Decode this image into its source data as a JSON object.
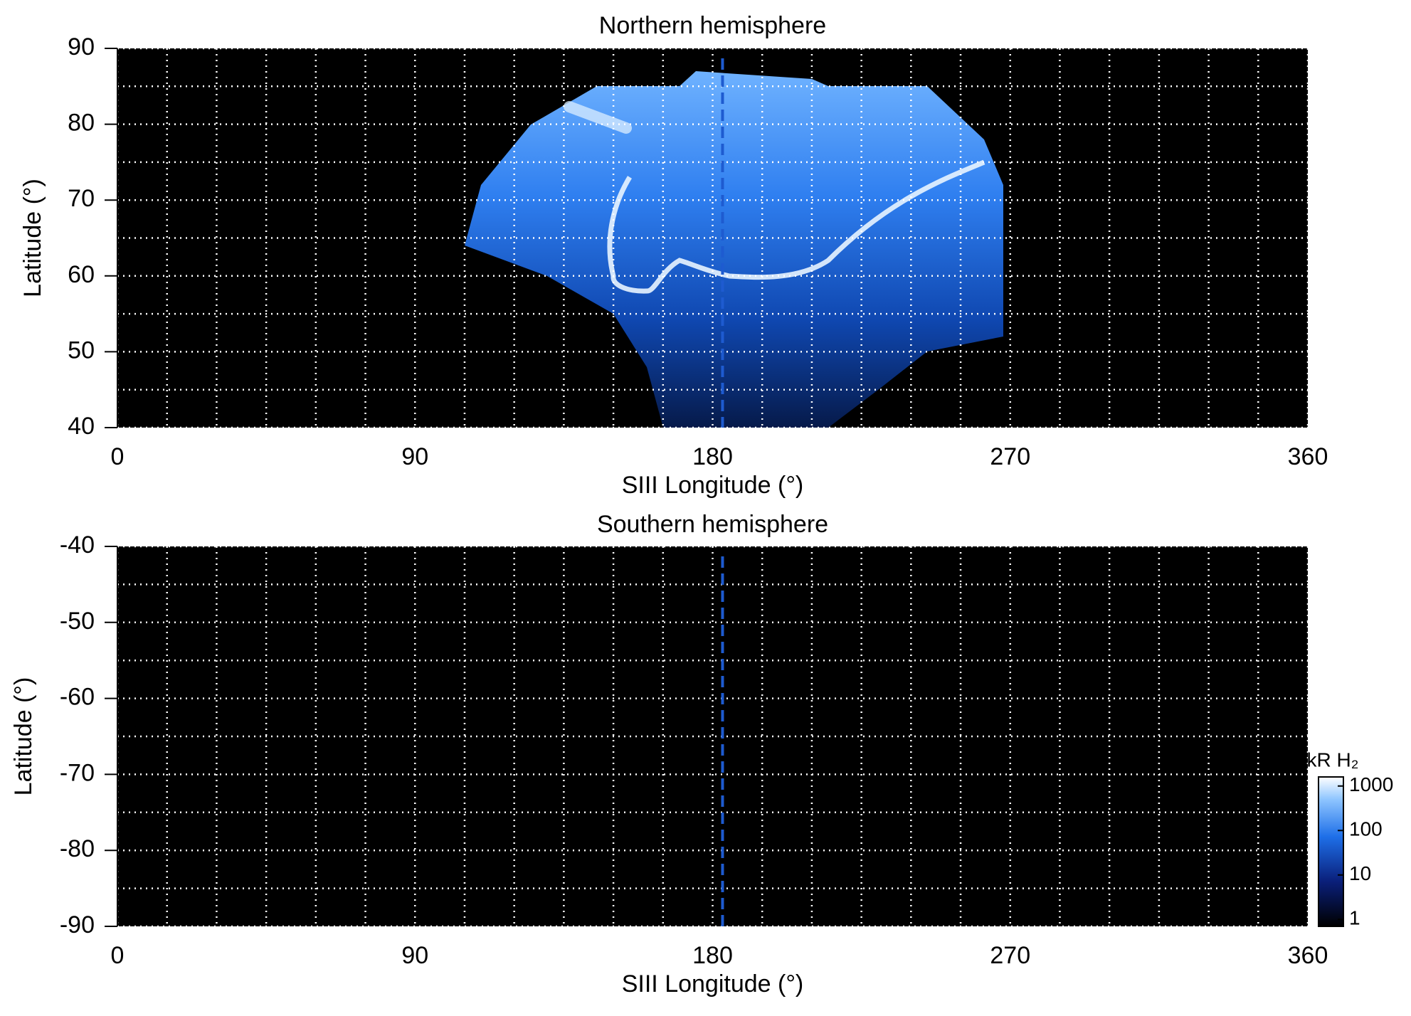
{
  "chart_data": [
    {
      "type": "heatmap",
      "title": "Northern hemisphere",
      "xlabel": "SIII Longitude (°)",
      "ylabel": "Latitude (°)",
      "xlim": [
        0,
        360
      ],
      "xticks": [
        0,
        90,
        180,
        270,
        360
      ],
      "ylim": [
        40,
        90
      ],
      "yticks": [
        40,
        50,
        60,
        70,
        80,
        90
      ],
      "xgrid": [
        0,
        15,
        30,
        45,
        60,
        75,
        90,
        105,
        120,
        135,
        150,
        165,
        180,
        195,
        210,
        225,
        240,
        255,
        270,
        285,
        300,
        315,
        330,
        345,
        360
      ],
      "ygrid": [
        40,
        45,
        50,
        55,
        60,
        65,
        70,
        75,
        80,
        85,
        90
      ],
      "grid_color": "#ffffff",
      "background": "#000000",
      "reference_line": {
        "x": 183,
        "color": "#1e5bd0"
      }
    },
    {
      "type": "heatmap",
      "title": "Southern hemisphere",
      "xlabel": "SIII Longitude (°)",
      "ylabel": "Latitude (°)",
      "xlim": [
        0,
        360
      ],
      "xticks": [
        0,
        90,
        180,
        270,
        360
      ],
      "ylim": [
        -90,
        -40
      ],
      "yticks": [
        -40,
        -50,
        -60,
        -70,
        -80,
        -90
      ],
      "xgrid": [
        0,
        15,
        30,
        45,
        60,
        75,
        90,
        105,
        120,
        135,
        150,
        165,
        180,
        195,
        210,
        225,
        240,
        255,
        270,
        285,
        300,
        315,
        330,
        345,
        360
      ],
      "ygrid": [
        -90,
        -85,
        -80,
        -75,
        -70,
        -65,
        -60,
        -55,
        -50,
        -45,
        -40
      ],
      "grid_color": "#ffffff",
      "background": "#000000",
      "reference_line": {
        "x": 183,
        "color": "#1e5bd0"
      },
      "colorbar": {
        "label": "kR H₂",
        "log": true,
        "lim": [
          0.7,
          1600
        ],
        "ticks": [
          1,
          10,
          100,
          1000
        ]
      }
    }
  ]
}
